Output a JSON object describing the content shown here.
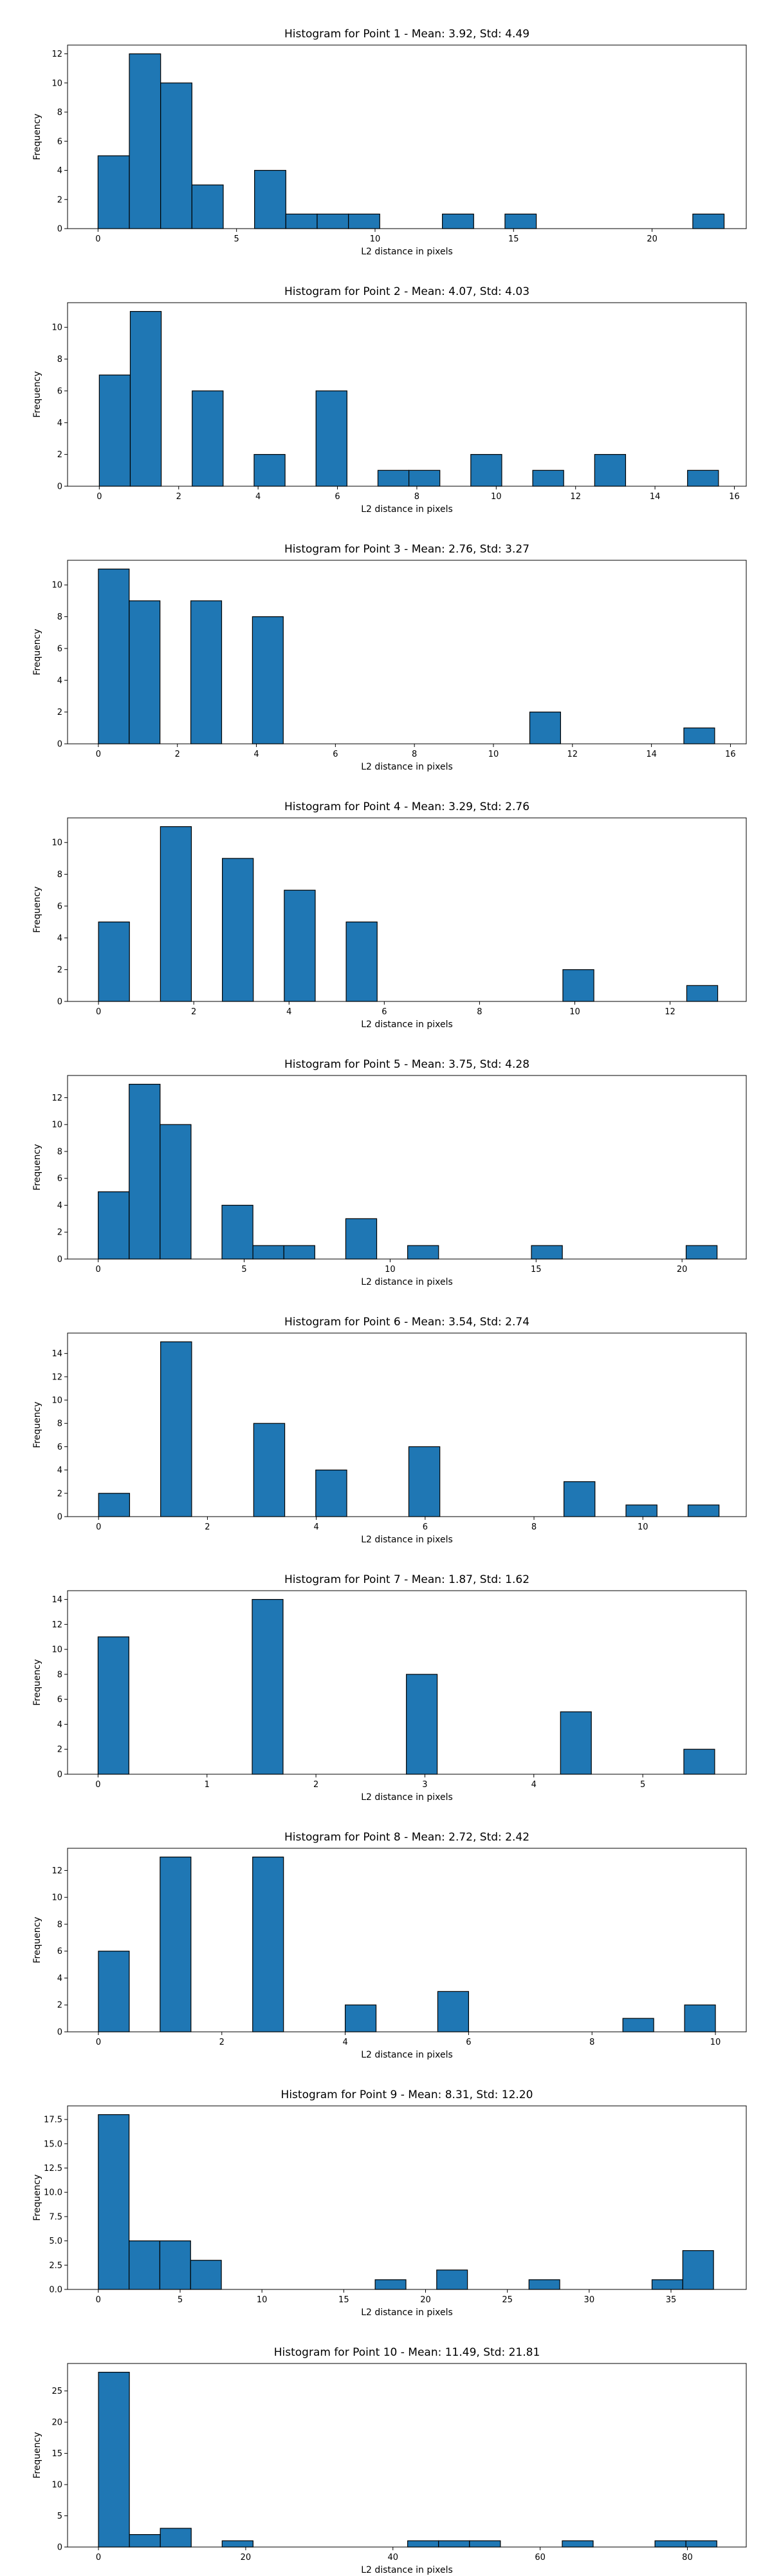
{
  "figure": {
    "bar_color": "#1f77b4",
    "edge_color": "#000000"
  },
  "chart_data": [
    {
      "type": "bar",
      "title": "Histogram for Point 1 - Mean: 3.92, Std: 4.49",
      "xlabel": "L2 distance in pixels",
      "ylabel": "Frequency",
      "xlim": [
        -1.1,
        23.4
      ],
      "ylim": [
        0,
        12.6
      ],
      "xticks": [
        0,
        5,
        10,
        15,
        20
      ],
      "yticks": [
        0,
        2,
        4,
        6,
        8,
        10,
        12
      ],
      "bin_width": 1.13,
      "bins": [
        {
          "x": 0.0,
          "count": 5
        },
        {
          "x": 1.13,
          "count": 12
        },
        {
          "x": 2.26,
          "count": 10
        },
        {
          "x": 3.39,
          "count": 3
        },
        {
          "x": 5.65,
          "count": 4
        },
        {
          "x": 6.78,
          "count": 1
        },
        {
          "x": 7.91,
          "count": 1
        },
        {
          "x": 9.04,
          "count": 1
        },
        {
          "x": 12.43,
          "count": 1
        },
        {
          "x": 14.69,
          "count": 1
        },
        {
          "x": 21.47,
          "count": 1
        }
      ]
    },
    {
      "type": "bar",
      "title": "Histogram for Point 2 - Mean: 4.07, Std: 4.03",
      "xlabel": "L2 distance in pixels",
      "ylabel": "Frequency",
      "xlim": [
        -0.8,
        16.3
      ],
      "ylim": [
        0,
        11.55
      ],
      "xticks": [
        0,
        2,
        4,
        6,
        8,
        10,
        12,
        14,
        16
      ],
      "yticks": [
        0,
        2,
        4,
        6,
        8,
        10
      ],
      "bin_width": 0.78,
      "bins": [
        {
          "x": 0.0,
          "count": 7
        },
        {
          "x": 0.78,
          "count": 11
        },
        {
          "x": 2.34,
          "count": 6
        },
        {
          "x": 3.9,
          "count": 2
        },
        {
          "x": 5.46,
          "count": 6
        },
        {
          "x": 7.02,
          "count": 1
        },
        {
          "x": 7.8,
          "count": 1
        },
        {
          "x": 9.36,
          "count": 2
        },
        {
          "x": 10.92,
          "count": 1
        },
        {
          "x": 12.48,
          "count": 2
        },
        {
          "x": 14.82,
          "count": 1
        }
      ]
    },
    {
      "type": "bar",
      "title": "Histogram for Point 3 - Mean: 2.76, Std: 3.27",
      "xlabel": "L2 distance in pixels",
      "ylabel": "Frequency",
      "xlim": [
        -0.78,
        16.4
      ],
      "ylim": [
        0,
        11.55
      ],
      "xticks": [
        0,
        2,
        4,
        6,
        8,
        10,
        12,
        14,
        16
      ],
      "yticks": [
        0,
        2,
        4,
        6,
        8,
        10
      ],
      "bin_width": 0.78,
      "bins": [
        {
          "x": 0.0,
          "count": 11
        },
        {
          "x": 0.78,
          "count": 9
        },
        {
          "x": 2.34,
          "count": 9
        },
        {
          "x": 3.9,
          "count": 8
        },
        {
          "x": 10.92,
          "count": 2
        },
        {
          "x": 14.82,
          "count": 1
        }
      ]
    },
    {
      "type": "bar",
      "title": "Histogram for Point 4 - Mean: 3.29, Std: 2.76",
      "xlabel": "L2 distance in pixels",
      "ylabel": "Frequency",
      "xlim": [
        -0.65,
        13.6
      ],
      "ylim": [
        0,
        11.55
      ],
      "xticks": [
        0,
        2,
        4,
        6,
        8,
        10,
        12
      ],
      "yticks": [
        0,
        2,
        4,
        6,
        8,
        10
      ],
      "bin_width": 0.65,
      "bins": [
        {
          "x": 0.0,
          "count": 5
        },
        {
          "x": 1.3,
          "count": 11
        },
        {
          "x": 2.6,
          "count": 9
        },
        {
          "x": 3.9,
          "count": 7
        },
        {
          "x": 5.2,
          "count": 5
        },
        {
          "x": 9.75,
          "count": 2
        },
        {
          "x": 12.35,
          "count": 1
        }
      ]
    },
    {
      "type": "bar",
      "title": "Histogram for Point 5 - Mean: 3.75, Std: 4.28",
      "xlabel": "L2 distance in pixels",
      "ylabel": "Frequency",
      "xlim": [
        -1.05,
        22.2
      ],
      "ylim": [
        0,
        13.65
      ],
      "xticks": [
        0,
        5,
        10,
        15,
        20
      ],
      "yticks": [
        0,
        2,
        4,
        6,
        8,
        10,
        12
      ],
      "bin_width": 1.06,
      "bins": [
        {
          "x": 0.0,
          "count": 5
        },
        {
          "x": 1.06,
          "count": 13
        },
        {
          "x": 2.12,
          "count": 10
        },
        {
          "x": 4.24,
          "count": 4
        },
        {
          "x": 5.3,
          "count": 1
        },
        {
          "x": 6.36,
          "count": 1
        },
        {
          "x": 8.48,
          "count": 3
        },
        {
          "x": 10.6,
          "count": 1
        },
        {
          "x": 14.84,
          "count": 1
        },
        {
          "x": 20.14,
          "count": 1
        }
      ]
    },
    {
      "type": "bar",
      "title": "Histogram for Point 6 - Mean: 3.54, Std: 2.74",
      "xlabel": "L2 distance in pixels",
      "ylabel": "Frequency",
      "xlim": [
        -0.57,
        11.9
      ],
      "ylim": [
        0,
        15.75
      ],
      "xticks": [
        0,
        2,
        4,
        6,
        8,
        10
      ],
      "yticks": [
        0,
        2,
        4,
        6,
        8,
        10,
        12,
        14
      ],
      "bin_width": 0.57,
      "bins": [
        {
          "x": 0.0,
          "count": 2
        },
        {
          "x": 1.14,
          "count": 15
        },
        {
          "x": 2.85,
          "count": 8
        },
        {
          "x": 3.99,
          "count": 4
        },
        {
          "x": 5.7,
          "count": 6
        },
        {
          "x": 8.55,
          "count": 3
        },
        {
          "x": 9.69,
          "count": 1
        },
        {
          "x": 10.83,
          "count": 1
        }
      ]
    },
    {
      "type": "bar",
      "title": "Histogram for Point 7 - Mean: 1.87, Std: 1.62",
      "xlabel": "L2 distance in pixels",
      "ylabel": "Frequency",
      "xlim": [
        -0.28,
        5.95
      ],
      "ylim": [
        0,
        14.7
      ],
      "xticks": [
        0,
        1,
        2,
        3,
        4,
        5
      ],
      "yticks": [
        0,
        2,
        4,
        6,
        8,
        10,
        12,
        14
      ],
      "bin_width": 0.283,
      "bins": [
        {
          "x": 0.0,
          "count": 11
        },
        {
          "x": 1.415,
          "count": 14
        },
        {
          "x": 2.83,
          "count": 8
        },
        {
          "x": 4.245,
          "count": 5
        },
        {
          "x": 5.377,
          "count": 2
        }
      ]
    },
    {
      "type": "bar",
      "title": "Histogram for Point 8 - Mean: 2.72, Std: 2.42",
      "xlabel": "L2 distance in pixels",
      "ylabel": "Frequency",
      "xlim": [
        -0.5,
        10.5
      ],
      "ylim": [
        0,
        13.65
      ],
      "xticks": [
        0,
        2,
        4,
        6,
        8,
        10
      ],
      "yticks": [
        0,
        2,
        4,
        6,
        8,
        10,
        12
      ],
      "bin_width": 0.5,
      "bins": [
        {
          "x": 0.0,
          "count": 6
        },
        {
          "x": 1.0,
          "count": 13
        },
        {
          "x": 2.5,
          "count": 13
        },
        {
          "x": 4.0,
          "count": 2
        },
        {
          "x": 5.5,
          "count": 3
        },
        {
          "x": 8.5,
          "count": 1
        },
        {
          "x": 9.5,
          "count": 2
        }
      ]
    },
    {
      "type": "bar",
      "title": "Histogram for Point 9 - Mean: 8.31, Std: 12.20",
      "xlabel": "L2 distance in pixels",
      "ylabel": "Frequency",
      "xlim": [
        -1.88,
        39.6
      ],
      "ylim": [
        0,
        18.9
      ],
      "xticks": [
        0,
        5,
        10,
        15,
        20,
        25,
        30,
        35
      ],
      "yticks": [
        0.0,
        2.5,
        5.0,
        7.5,
        10.0,
        12.5,
        15.0,
        17.5
      ],
      "tick_decimals": 1,
      "bin_width": 1.88,
      "bins": [
        {
          "x": 0.0,
          "count": 18
        },
        {
          "x": 1.88,
          "count": 5
        },
        {
          "x": 3.76,
          "count": 5
        },
        {
          "x": 5.64,
          "count": 3
        },
        {
          "x": 16.92,
          "count": 1
        },
        {
          "x": 20.68,
          "count": 2
        },
        {
          "x": 26.32,
          "count": 1
        },
        {
          "x": 33.84,
          "count": 1
        },
        {
          "x": 35.72,
          "count": 4
        }
      ]
    },
    {
      "type": "bar",
      "title": "Histogram for Point 10 - Mean: 11.49, Std: 21.81",
      "xlabel": "L2 distance in pixels",
      "ylabel": "Frequency",
      "xlim": [
        -4.2,
        88.0
      ],
      "ylim": [
        0,
        29.4
      ],
      "xticks": [
        0,
        20,
        40,
        60,
        80
      ],
      "yticks": [
        0,
        5,
        10,
        15,
        20,
        25
      ],
      "bin_width": 4.2,
      "bins": [
        {
          "x": 0.0,
          "count": 28
        },
        {
          "x": 4.2,
          "count": 2
        },
        {
          "x": 8.4,
          "count": 3
        },
        {
          "x": 16.8,
          "count": 1
        },
        {
          "x": 42.0,
          "count": 1
        },
        {
          "x": 46.2,
          "count": 1
        },
        {
          "x": 50.4,
          "count": 1
        },
        {
          "x": 63.0,
          "count": 1
        },
        {
          "x": 75.6,
          "count": 1
        },
        {
          "x": 79.8,
          "count": 1
        }
      ]
    }
  ]
}
